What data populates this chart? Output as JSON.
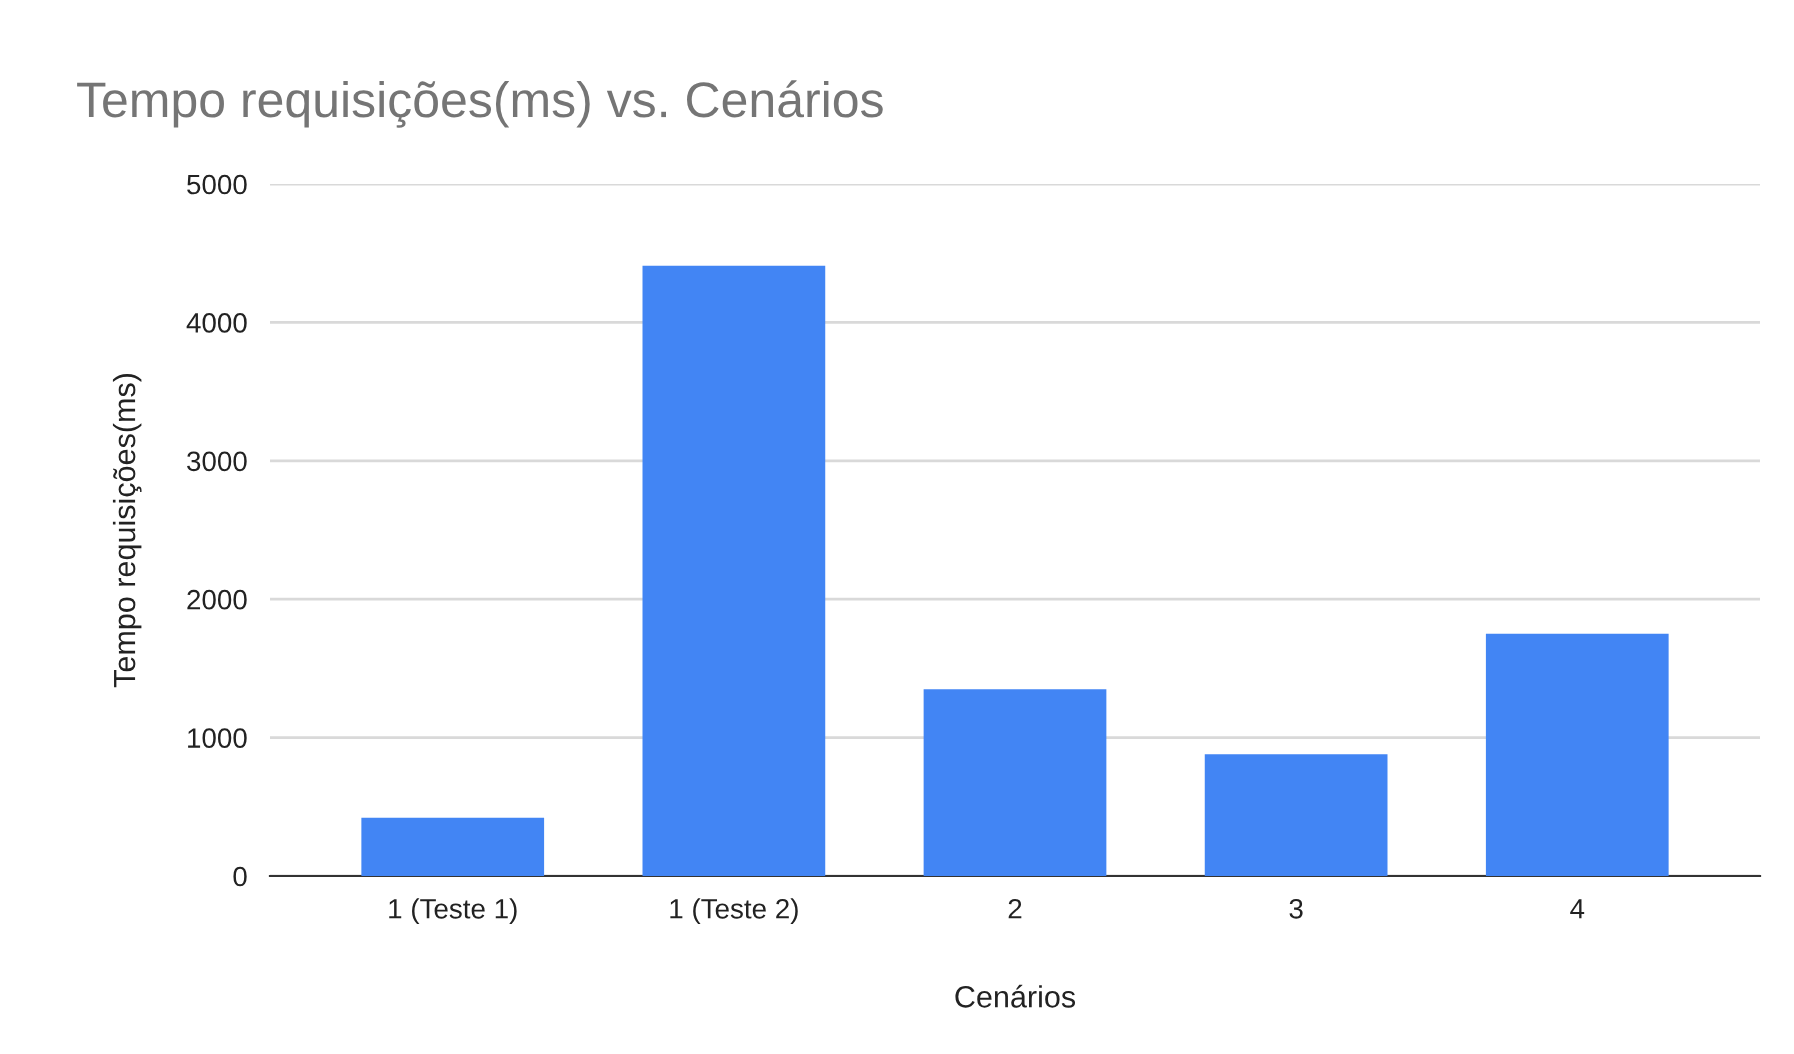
{
  "chart_data": {
    "type": "bar",
    "title": "Tempo requisições(ms) vs. Cenários",
    "xlabel": "Cenários",
    "ylabel": "Tempo requisições(ms)",
    "categories": [
      "1 (Teste 1)",
      "1 (Teste 2)",
      "2",
      "3",
      "4"
    ],
    "values": [
      420,
      4410,
      1350,
      880,
      1750
    ],
    "color": "#4285f4",
    "ylim": [
      0,
      5000
    ],
    "yticks": [
      0,
      1000,
      2000,
      3000,
      4000,
      5000
    ],
    "grid": "y",
    "legend": false
  }
}
